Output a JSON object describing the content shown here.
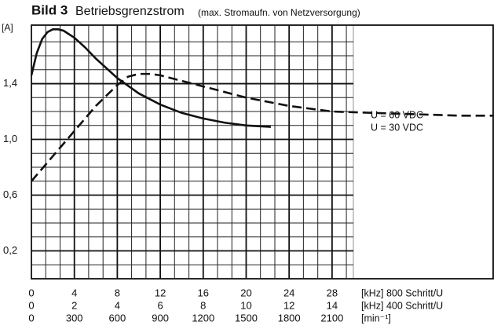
{
  "chart_data": {
    "type": "line",
    "title": "Bild 3",
    "subtitle": "Betriebsgrenzstrom",
    "note": "(max. Stromaufn. von Netzversorgung)",
    "y_label": "[A]",
    "xlim": [
      0,
      43
    ],
    "ylim": [
      0,
      1.82
    ],
    "xticks": [
      0,
      4,
      8,
      12,
      16,
      20,
      24,
      28
    ],
    "x_label": "[kHz] 800 Schritt/U",
    "x2lim": [
      0,
      21.5
    ],
    "x2ticks": [
      0,
      2,
      4,
      6,
      8,
      10,
      12,
      14
    ],
    "x2_label": "[kHz] 400 Schritt/U",
    "x3lim": [
      0,
      3225
    ],
    "x3ticks": [
      0,
      300,
      600,
      900,
      1200,
      1500,
      1800,
      2100
    ],
    "x3_label": "[min⁻¹]",
    "yticks": [
      {
        "value": 0.2,
        "label": "0,2"
      },
      {
        "value": 0.6,
        "label": "0,6"
      },
      {
        "value": 1.0,
        "label": "1,0"
      },
      {
        "value": 1.4,
        "label": "1,4"
      }
    ],
    "x_minor_ticks": [
      1.33,
      2.67,
      5.33,
      6.67,
      9.33,
      10.67,
      13.33,
      14.67,
      17.33,
      18.67,
      21.33,
      22.67,
      25.33,
      26.67,
      29.33,
      30
    ],
    "y_minor_ticks": [
      0.1,
      0.3,
      0.4,
      0.5,
      0.7,
      0.8,
      0.9,
      1.1,
      1.2,
      1.3,
      1.5,
      1.6,
      1.7
    ],
    "grid": true,
    "series": [
      {
        "name": "U = 60 VDC",
        "color": "#111",
        "dash": false,
        "x": [
          0,
          0.5,
          1,
          1.5,
          2,
          2.5,
          3,
          4,
          5,
          6,
          7,
          8,
          10,
          12,
          14,
          16,
          18,
          20,
          22.3
        ],
        "values": [
          1.46,
          1.62,
          1.72,
          1.77,
          1.79,
          1.79,
          1.78,
          1.73,
          1.66,
          1.58,
          1.51,
          1.44,
          1.33,
          1.25,
          1.19,
          1.15,
          1.12,
          1.1,
          1.09
        ]
      },
      {
        "name": "U = 30 VDC",
        "color": "#111",
        "dash": true,
        "x": [
          0,
          2,
          4,
          6,
          8,
          9,
          10,
          11,
          12,
          14,
          16,
          18,
          20,
          24,
          28,
          32,
          36,
          40,
          43
        ],
        "values": [
          0.7,
          0.88,
          1.06,
          1.24,
          1.39,
          1.45,
          1.47,
          1.47,
          1.46,
          1.42,
          1.38,
          1.34,
          1.3,
          1.24,
          1.2,
          1.19,
          1.18,
          1.17,
          1.17
        ]
      }
    ]
  }
}
